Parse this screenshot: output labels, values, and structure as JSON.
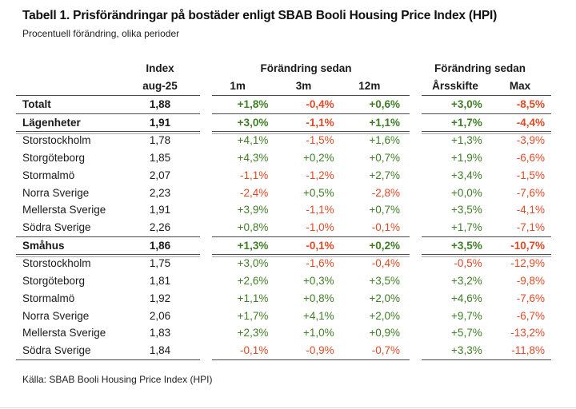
{
  "title": "Tabell 1. Prisförändringar på bostäder enligt SBAB Booli Housing Price Index (HPI)",
  "subtitle": "Procentuell förändring, olika perioder",
  "source": "Källa: SBAB Booli Housing Price Index (HPI)",
  "colors": {
    "positive": "#3f7e26",
    "negative": "#dd4a26",
    "rule_dark": "#4a4a4a",
    "rule_light": "#a9a9a9",
    "text": "#1a1a1a"
  },
  "header": {
    "index_label": "Index",
    "index_period": "aug-25",
    "change_group_mid_title": "Förändring sedan",
    "change_group_right_title": "Förändring sedan",
    "col_1m": "1m",
    "col_3m": "3m",
    "col_12m": "12m",
    "col_ytd": "Årsskifte",
    "col_max": "Max"
  },
  "rows": [
    {
      "label": "Totalt",
      "bold": true,
      "index": "1,88",
      "m1": "+1,8%",
      "m3": "-0,4%",
      "m12": "+0,6%",
      "ytd": "+3,0%",
      "max": "-8,5%",
      "border_below": "single"
    },
    {
      "label": "Lägenheter",
      "bold": true,
      "index": "1,91",
      "m1": "+3,0%",
      "m3": "-1,1%",
      "m12": "+1,1%",
      "ytd": "+1,7%",
      "max": "-4,4%",
      "border_below": "double"
    },
    {
      "label": "Storstockholm",
      "bold": false,
      "index": "1,78",
      "m1": "+4,1%",
      "m3": "-1,5%",
      "m12": "+1,6%",
      "ytd": "+1,3%",
      "max": "-3,9%",
      "border_below": "none"
    },
    {
      "label": "Storgöteborg",
      "bold": false,
      "index": "1,85",
      "m1": "+4,3%",
      "m3": "+0,2%",
      "m12": "+0,7%",
      "ytd": "+1,9%",
      "max": "-6,6%",
      "border_below": "none"
    },
    {
      "label": "Stormalmö",
      "bold": false,
      "index": "2,07",
      "m1": "-1,1%",
      "m3": "-1,2%",
      "m12": "+2,7%",
      "ytd": "+3,4%",
      "max": "-1,5%",
      "border_below": "none"
    },
    {
      "label": "Norra Sverige",
      "bold": false,
      "index": "2,23",
      "m1": "-2,4%",
      "m3": "+0,5%",
      "m12": "-2,8%",
      "ytd": "+0,0%",
      "max": "-7,6%",
      "border_below": "none"
    },
    {
      "label": "Mellersta Sverige",
      "bold": false,
      "index": "1,91",
      "m1": "+3,9%",
      "m3": "-1,1%",
      "m12": "+0,7%",
      "ytd": "+3,5%",
      "max": "-4,1%",
      "border_below": "none"
    },
    {
      "label": "Södra Sverige",
      "bold": false,
      "index": "2,26",
      "m1": "+0,8%",
      "m3": "-1,0%",
      "m12": "-0,1%",
      "ytd": "+1,7%",
      "max": "-7,1%",
      "border_below": "single"
    },
    {
      "label": "Småhus",
      "bold": true,
      "index": "1,86",
      "m1": "+1,3%",
      "m3": "-0,1%",
      "m12": "+0,2%",
      "ytd": "+3,5%",
      "max": "-10,7%",
      "border_below": "double"
    },
    {
      "label": "Storstockholm",
      "bold": false,
      "index": "1,75",
      "m1": "+3,0%",
      "m3": "-1,6%",
      "m12": "-0,4%",
      "ytd": "-0,5%",
      "max": "-12,9%",
      "border_below": "none"
    },
    {
      "label": "Storgöteborg",
      "bold": false,
      "index": "1,81",
      "m1": "+2,6%",
      "m3": "+0,3%",
      "m12": "+3,5%",
      "ytd": "+3,2%",
      "max": "-9,8%",
      "border_below": "none"
    },
    {
      "label": "Stormalmö",
      "bold": false,
      "index": "1,92",
      "m1": "+1,1%",
      "m3": "+0,8%",
      "m12": "+2,0%",
      "ytd": "+4,6%",
      "max": "-7,6%",
      "border_below": "none"
    },
    {
      "label": "Norra Sverige",
      "bold": false,
      "index": "2,06",
      "m1": "+1,7%",
      "m3": "+4,1%",
      "m12": "+2,0%",
      "ytd": "+9,7%",
      "max": "-6,7%",
      "border_below": "none"
    },
    {
      "label": "Mellersta Sverige",
      "bold": false,
      "index": "1,83",
      "m1": "+2,3%",
      "m3": "+1,0%",
      "m12": "+0,9%",
      "ytd": "+5,7%",
      "max": "-13,2%",
      "border_below": "none"
    },
    {
      "label": "Södra Sverige",
      "bold": false,
      "index": "1,84",
      "m1": "-0,1%",
      "m3": "-0,9%",
      "m12": "-0,7%",
      "ytd": "+3,3%",
      "max": "-11,8%",
      "border_below": "single"
    }
  ]
}
